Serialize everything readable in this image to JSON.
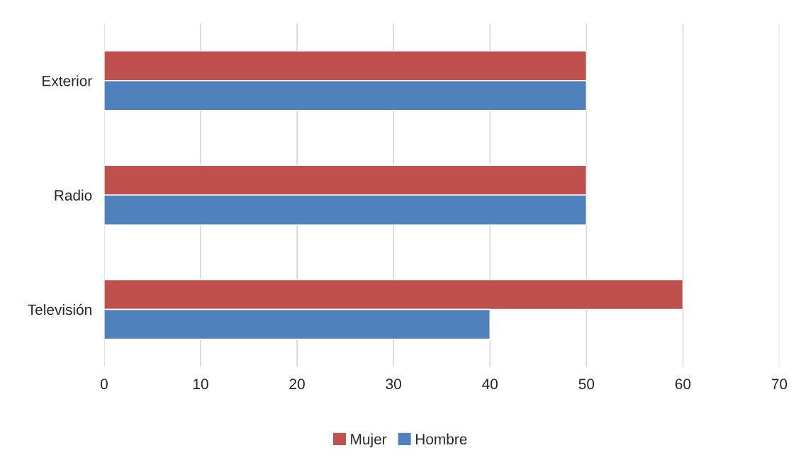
{
  "chart_data": {
    "type": "bar",
    "orientation": "horizontal",
    "categories": [
      "Exterior",
      "Radio",
      "Televisión"
    ],
    "series": [
      {
        "name": "Mujer",
        "color": "#c0504d",
        "values": [
          50,
          50,
          60
        ]
      },
      {
        "name": "Hombre",
        "color": "#4f81bd",
        "values": [
          50,
          50,
          40
        ]
      }
    ],
    "xlim": [
      0,
      70
    ],
    "xticks": [
      0,
      10,
      20,
      30,
      40,
      50,
      60,
      70
    ],
    "grid": "x",
    "legend": "bottom"
  }
}
